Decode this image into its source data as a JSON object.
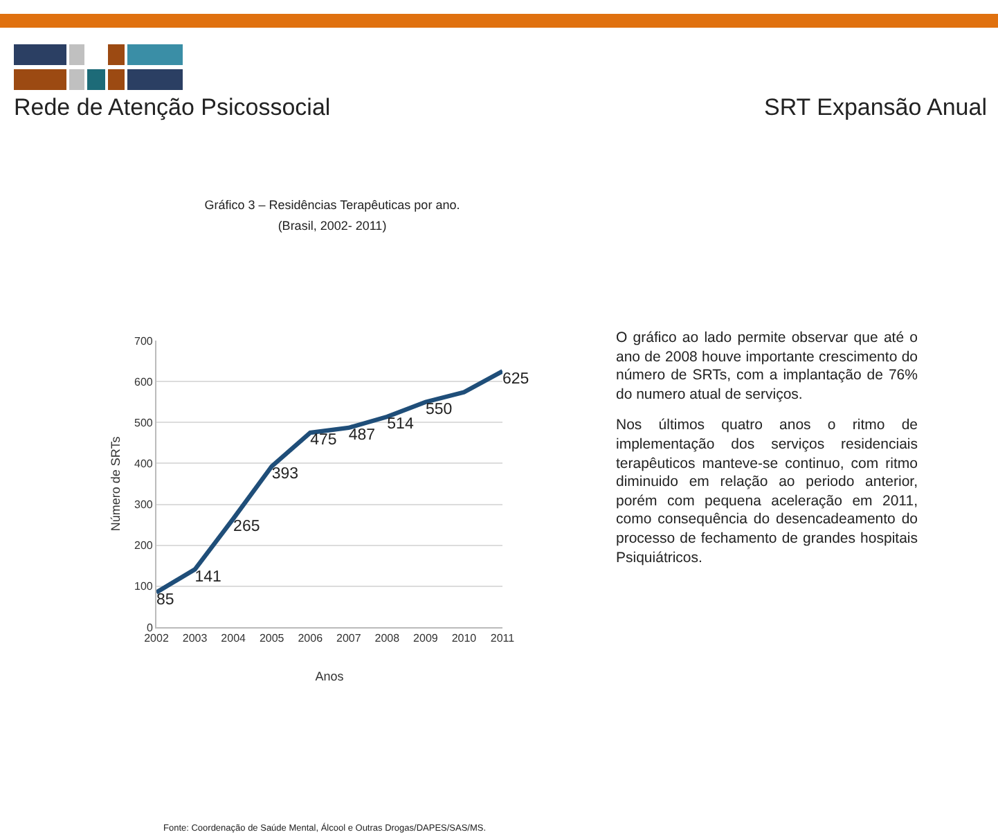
{
  "chart_data": {
    "type": "line",
    "title": "Gráfico 3 – Residências Terapêuticas por ano.",
    "subtitle": "(Brasil, 2002- 2011)",
    "xlabel": "Anos",
    "ylabel": "Número de SRTs",
    "categories": [
      "2002",
      "2003",
      "2004",
      "2005",
      "2006",
      "2007",
      "2008",
      "2009",
      "2010",
      "2011"
    ],
    "series": [
      {
        "color": "#1f4e79",
        "values": [
          85,
          141,
          265,
          393,
          475,
          487,
          514,
          550,
          574,
          625
        ],
        "value_labels": [
          "85",
          "141",
          "265",
          "393",
          "475",
          "487",
          "514",
          "550",
          null,
          "625"
        ]
      }
    ],
    "ylim": [
      0,
      700
    ],
    "yticks": [
      0,
      100,
      200,
      300,
      400,
      500,
      600,
      700
    ],
    "grid": "y",
    "marker": "none",
    "line_style": "solid",
    "annotations": [
      "Rede de Atenção Psicossocial",
      "SRT Expansão Anual",
      "O gráfico ao lado permite observar que até o ano de 2008 houve importante crescimento do número de SRTs, com a implantação de 76% do numero atual de serviços.",
      "Nos últimos quatro anos o ritmo de implementação dos serviços residenciais terapêuticos  manteve-se continuo, com ritmo diminuido em relação ao periodo anterior, porém com pequena aceleração em 2011, como consequência do desencadeamento do processo de fechamento de grandes hospitais Psiquiátricos.",
      "Fonte: Coordenação de Saúde Mental, Álcool e Outras Drogas/DAPES/SAS/MS."
    ]
  }
}
